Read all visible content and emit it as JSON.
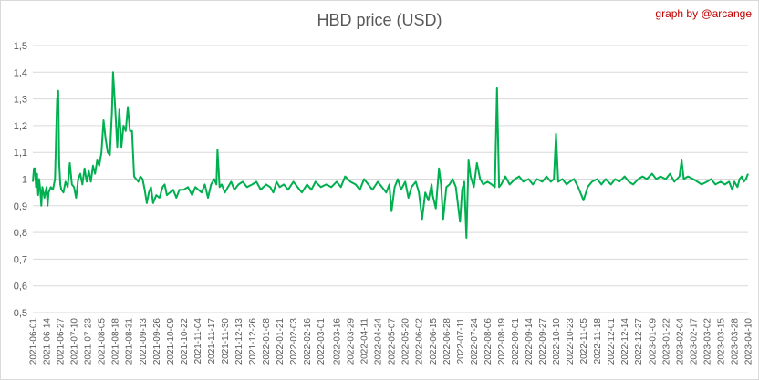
{
  "chart_data": {
    "type": "line",
    "title": "HBD price (USD)",
    "credit": "graph by @arcange",
    "xlabel": "",
    "ylabel": "",
    "ylim": [
      0.5,
      1.5
    ],
    "yticks": [
      "0,5",
      "0,6",
      "0,7",
      "0,8",
      "0,9",
      "1",
      "1,1",
      "1,2",
      "1,3",
      "1,4",
      "1,5"
    ],
    "grid": true,
    "x_start": "2021-06-01",
    "x_end": "2023-04-10",
    "xtick_labels": [
      "2021-06-01",
      "2021-06-14",
      "2021-06-27",
      "2021-07-10",
      "2021-07-23",
      "2021-08-05",
      "2021-08-18",
      "2021-08-31",
      "2021-09-13",
      "2021-09-26",
      "2021-10-09",
      "2021-10-22",
      "2021-11-04",
      "2021-11-17",
      "2021-11-30",
      "2021-12-13",
      "2021-12-26",
      "2022-01-08",
      "2022-01-21",
      "2022-02-03",
      "2022-02-16",
      "2022-03-01",
      "2022-03-16",
      "2022-03-29",
      "2022-04-11",
      "2022-04-24",
      "2022-05-07",
      "2022-05-20",
      "2022-06-02",
      "2022-06-15",
      "2022-06-28",
      "2022-07-11",
      "2022-07-24",
      "2022-08-06",
      "2022-08-19",
      "2022-09-01",
      "2022-09-14",
      "2022-09-27",
      "2022-10-10",
      "2022-10-23",
      "2022-11-05",
      "2022-11-18",
      "2022-12-01",
      "2022-12-14",
      "2022-12-27",
      "2023-01-09",
      "2023-01-22",
      "2023-02-04",
      "2023-02-17",
      "2023-03-02",
      "2023-03-15",
      "2023-03-28",
      "2023-04-10"
    ],
    "series": [
      {
        "name": "",
        "color": "#00b050",
        "points": [
          [
            "2021-06-01",
            0.99
          ],
          [
            "2021-06-02",
            1.04
          ],
          [
            "2021-06-03",
            1.04
          ],
          [
            "2021-06-04",
            0.97
          ],
          [
            "2021-06-05",
            1.02
          ],
          [
            "2021-06-06",
            0.94
          ],
          [
            "2021-06-07",
            1.0
          ],
          [
            "2021-06-08",
            0.96
          ],
          [
            "2021-06-09",
            0.9
          ],
          [
            "2021-06-10",
            0.97
          ],
          [
            "2021-06-11",
            0.95
          ],
          [
            "2021-06-12",
            0.93
          ],
          [
            "2021-06-14",
            0.97
          ],
          [
            "2021-06-15",
            0.9
          ],
          [
            "2021-06-16",
            0.95
          ],
          [
            "2021-06-18",
            0.97
          ],
          [
            "2021-06-20",
            0.96
          ],
          [
            "2021-06-22",
            1.0
          ],
          [
            "2021-06-23",
            1.15
          ],
          [
            "2021-06-24",
            1.3
          ],
          [
            "2021-06-25",
            1.33
          ],
          [
            "2021-06-26",
            1.06
          ],
          [
            "2021-06-27",
            0.98
          ],
          [
            "2021-06-28",
            0.96
          ],
          [
            "2021-06-30",
            0.95
          ],
          [
            "2021-07-02",
            0.99
          ],
          [
            "2021-07-04",
            0.97
          ],
          [
            "2021-07-06",
            1.06
          ],
          [
            "2021-07-08",
            0.98
          ],
          [
            "2021-07-10",
            0.97
          ],
          [
            "2021-07-12",
            0.93
          ],
          [
            "2021-07-14",
            1.0
          ],
          [
            "2021-07-16",
            1.02
          ],
          [
            "2021-07-18",
            0.98
          ],
          [
            "2021-07-20",
            1.04
          ],
          [
            "2021-07-22",
            0.99
          ],
          [
            "2021-07-24",
            1.03
          ],
          [
            "2021-07-26",
            0.99
          ],
          [
            "2021-07-28",
            1.05
          ],
          [
            "2021-07-30",
            1.02
          ],
          [
            "2021-08-01",
            1.07
          ],
          [
            "2021-08-03",
            1.05
          ],
          [
            "2021-08-05",
            1.1
          ],
          [
            "2021-08-07",
            1.22
          ],
          [
            "2021-08-09",
            1.15
          ],
          [
            "2021-08-11",
            1.1
          ],
          [
            "2021-08-13",
            1.09
          ],
          [
            "2021-08-15",
            1.25
          ],
          [
            "2021-08-16",
            1.4
          ],
          [
            "2021-08-18",
            1.27
          ],
          [
            "2021-08-20",
            1.12
          ],
          [
            "2021-08-22",
            1.26
          ],
          [
            "2021-08-24",
            1.12
          ],
          [
            "2021-08-26",
            1.2
          ],
          [
            "2021-08-28",
            1.18
          ],
          [
            "2021-08-30",
            1.27
          ],
          [
            "2021-09-01",
            1.18
          ],
          [
            "2021-09-03",
            1.18
          ],
          [
            "2021-09-05",
            1.01
          ],
          [
            "2021-09-07",
            1.0
          ],
          [
            "2021-09-09",
            0.99
          ],
          [
            "2021-09-11",
            1.01
          ],
          [
            "2021-09-13",
            1.0
          ],
          [
            "2021-09-15",
            0.96
          ],
          [
            "2021-09-17",
            0.91
          ],
          [
            "2021-09-19",
            0.95
          ],
          [
            "2021-09-21",
            0.97
          ],
          [
            "2021-09-23",
            0.91
          ],
          [
            "2021-09-26",
            0.94
          ],
          [
            "2021-09-29",
            0.93
          ],
          [
            "2021-10-02",
            0.97
          ],
          [
            "2021-10-04",
            0.98
          ],
          [
            "2021-10-06",
            0.94
          ],
          [
            "2021-10-09",
            0.95
          ],
          [
            "2021-10-12",
            0.96
          ],
          [
            "2021-10-15",
            0.93
          ],
          [
            "2021-10-18",
            0.96
          ],
          [
            "2021-10-22",
            0.96
          ],
          [
            "2021-10-26",
            0.97
          ],
          [
            "2021-10-30",
            0.94
          ],
          [
            "2021-11-02",
            0.97
          ],
          [
            "2021-11-05",
            0.96
          ],
          [
            "2021-11-08",
            0.95
          ],
          [
            "2021-11-11",
            0.98
          ],
          [
            "2021-11-14",
            0.93
          ],
          [
            "2021-11-17",
            0.98
          ],
          [
            "2021-11-20",
            1.0
          ],
          [
            "2021-11-22",
            0.98
          ],
          [
            "2021-11-23",
            1.11
          ],
          [
            "2021-11-25",
            0.97
          ],
          [
            "2021-11-27",
            0.98
          ],
          [
            "2021-11-30",
            0.95
          ],
          [
            "2021-12-03",
            0.97
          ],
          [
            "2021-12-06",
            0.99
          ],
          [
            "2021-12-09",
            0.96
          ],
          [
            "2021-12-13",
            0.98
          ],
          [
            "2021-12-17",
            0.99
          ],
          [
            "2021-12-21",
            0.97
          ],
          [
            "2021-12-26",
            0.98
          ],
          [
            "2021-12-30",
            0.99
          ],
          [
            "2022-01-03",
            0.96
          ],
          [
            "2022-01-08",
            0.98
          ],
          [
            "2022-01-12",
            0.97
          ],
          [
            "2022-01-15",
            0.95
          ],
          [
            "2022-01-18",
            0.99
          ],
          [
            "2022-01-21",
            0.97
          ],
          [
            "2022-01-25",
            0.98
          ],
          [
            "2022-01-29",
            0.96
          ],
          [
            "2022-02-03",
            0.99
          ],
          [
            "2022-02-07",
            0.97
          ],
          [
            "2022-02-11",
            0.95
          ],
          [
            "2022-02-16",
            0.98
          ],
          [
            "2022-02-20",
            0.96
          ],
          [
            "2022-02-24",
            0.99
          ],
          [
            "2022-03-01",
            0.97
          ],
          [
            "2022-03-06",
            0.98
          ],
          [
            "2022-03-11",
            0.97
          ],
          [
            "2022-03-16",
            0.99
          ],
          [
            "2022-03-20",
            0.97
          ],
          [
            "2022-03-24",
            1.01
          ],
          [
            "2022-03-29",
            0.99
          ],
          [
            "2022-04-03",
            0.98
          ],
          [
            "2022-04-07",
            0.96
          ],
          [
            "2022-04-11",
            1.0
          ],
          [
            "2022-04-15",
            0.98
          ],
          [
            "2022-04-19",
            0.96
          ],
          [
            "2022-04-24",
            0.99
          ],
          [
            "2022-04-28",
            0.97
          ],
          [
            "2022-05-02",
            0.95
          ],
          [
            "2022-05-05",
            0.98
          ],
          [
            "2022-05-07",
            0.88
          ],
          [
            "2022-05-10",
            0.97
          ],
          [
            "2022-05-13",
            1.0
          ],
          [
            "2022-05-16",
            0.96
          ],
          [
            "2022-05-20",
            0.99
          ],
          [
            "2022-05-23",
            0.93
          ],
          [
            "2022-05-26",
            0.97
          ],
          [
            "2022-05-30",
            0.99
          ],
          [
            "2022-06-02",
            0.95
          ],
          [
            "2022-06-05",
            0.85
          ],
          [
            "2022-06-08",
            0.95
          ],
          [
            "2022-06-11",
            0.92
          ],
          [
            "2022-06-14",
            0.98
          ],
          [
            "2022-06-15",
            0.94
          ],
          [
            "2022-06-18",
            0.89
          ],
          [
            "2022-06-21",
            1.04
          ],
          [
            "2022-06-23",
            0.98
          ],
          [
            "2022-06-25",
            0.85
          ],
          [
            "2022-06-28",
            0.97
          ],
          [
            "2022-07-01",
            0.98
          ],
          [
            "2022-07-04",
            1.0
          ],
          [
            "2022-07-07",
            0.97
          ],
          [
            "2022-07-11",
            0.84
          ],
          [
            "2022-07-13",
            0.96
          ],
          [
            "2022-07-15",
            0.99
          ],
          [
            "2022-07-17",
            0.78
          ],
          [
            "2022-07-19",
            1.07
          ],
          [
            "2022-07-21",
            1.01
          ],
          [
            "2022-07-24",
            0.97
          ],
          [
            "2022-07-27",
            1.06
          ],
          [
            "2022-07-30",
            1.0
          ],
          [
            "2022-08-02",
            0.98
          ],
          [
            "2022-08-06",
            0.99
          ],
          [
            "2022-08-10",
            0.98
          ],
          [
            "2022-08-13",
            0.97
          ],
          [
            "2022-08-15",
            1.34
          ],
          [
            "2022-08-17",
            0.97
          ],
          [
            "2022-08-19",
            0.98
          ],
          [
            "2022-08-23",
            1.01
          ],
          [
            "2022-08-27",
            0.98
          ],
          [
            "2022-09-01",
            1.0
          ],
          [
            "2022-09-05",
            1.01
          ],
          [
            "2022-09-09",
            0.99
          ],
          [
            "2022-09-14",
            1.0
          ],
          [
            "2022-09-18",
            0.98
          ],
          [
            "2022-09-22",
            1.0
          ],
          [
            "2022-09-27",
            0.99
          ],
          [
            "2022-10-01",
            1.01
          ],
          [
            "2022-10-05",
            0.99
          ],
          [
            "2022-10-08",
            1.0
          ],
          [
            "2022-10-10",
            1.17
          ],
          [
            "2022-10-12",
            0.99
          ],
          [
            "2022-10-16",
            1.0
          ],
          [
            "2022-10-20",
            0.98
          ],
          [
            "2022-10-23",
            0.99
          ],
          [
            "2022-10-27",
            1.0
          ],
          [
            "2022-10-31",
            0.97
          ],
          [
            "2022-11-05",
            0.92
          ],
          [
            "2022-11-09",
            0.97
          ],
          [
            "2022-11-13",
            0.99
          ],
          [
            "2022-11-18",
            1.0
          ],
          [
            "2022-11-22",
            0.98
          ],
          [
            "2022-11-26",
            1.0
          ],
          [
            "2022-12-01",
            0.98
          ],
          [
            "2022-12-05",
            1.0
          ],
          [
            "2022-12-09",
            0.99
          ],
          [
            "2022-12-14",
            1.01
          ],
          [
            "2022-12-18",
            0.99
          ],
          [
            "2022-12-22",
            0.98
          ],
          [
            "2022-12-27",
            1.0
          ],
          [
            "2022-12-31",
            1.01
          ],
          [
            "2023-01-04",
            1.0
          ],
          [
            "2023-01-09",
            1.02
          ],
          [
            "2023-01-13",
            1.0
          ],
          [
            "2023-01-17",
            1.01
          ],
          [
            "2023-01-22",
            1.0
          ],
          [
            "2023-01-26",
            1.02
          ],
          [
            "2023-01-30",
            0.99
          ],
          [
            "2023-02-04",
            1.01
          ],
          [
            "2023-02-06",
            1.07
          ],
          [
            "2023-02-08",
            1.0
          ],
          [
            "2023-02-12",
            1.01
          ],
          [
            "2023-02-17",
            1.0
          ],
          [
            "2023-02-21",
            0.99
          ],
          [
            "2023-02-25",
            0.98
          ],
          [
            "2023-03-02",
            0.99
          ],
          [
            "2023-03-06",
            1.0
          ],
          [
            "2023-03-10",
            0.98
          ],
          [
            "2023-03-15",
            0.99
          ],
          [
            "2023-03-19",
            0.98
          ],
          [
            "2023-03-23",
            0.99
          ],
          [
            "2023-03-26",
            0.96
          ],
          [
            "2023-03-28",
            0.99
          ],
          [
            "2023-03-31",
            0.97
          ],
          [
            "2023-04-02",
            1.0
          ],
          [
            "2023-04-04",
            1.01
          ],
          [
            "2023-04-06",
            0.99
          ],
          [
            "2023-04-08",
            1.0
          ],
          [
            "2023-04-10",
            1.02
          ]
        ]
      }
    ]
  }
}
